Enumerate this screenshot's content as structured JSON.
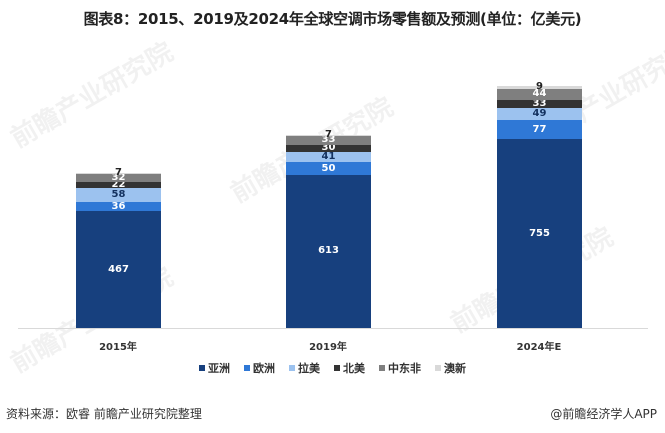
{
  "title": "图表8：2015、2019及2024年全球空调市场零售额及预测(单位：亿美元)",
  "watermark": "前瞻产业研究院",
  "source": "资料来源：欧睿 前瞻产业研究院整理",
  "credit": "@前瞻经济学人APP",
  "chart_data": {
    "type": "bar",
    "stacked": true,
    "title": "图表8：2015、2019及2024年全球空调市场零售额及预测(单位：亿美元)",
    "xlabel": "",
    "ylabel": "亿美元",
    "categories": [
      "2015年",
      "2019年",
      "2024年E"
    ],
    "series": [
      {
        "name": "亚洲",
        "color": "#17407e",
        "label_color": "#ffffff",
        "values": [
          467,
          613,
          755
        ]
      },
      {
        "name": "欧洲",
        "color": "#2f78d6",
        "label_color": "#ffffff",
        "values": [
          36,
          50,
          77
        ]
      },
      {
        "name": "拉美",
        "color": "#9cc2ef",
        "label_color": "#13315f",
        "values": [
          58,
          41,
          49
        ]
      },
      {
        "name": "北美",
        "color": "#333333",
        "label_color": "#ffffff",
        "values": [
          22,
          30,
          33
        ]
      },
      {
        "name": "中东非",
        "color": "#7f7f7f",
        "label_color": "#ffffff",
        "values": [
          32,
          33,
          44
        ]
      },
      {
        "name": "澳新",
        "color": "#d9d9d9",
        "label_color": "#222222",
        "values": [
          7,
          7,
          9
        ]
      }
    ],
    "grid": false,
    "yaxis_visible": false,
    "legend_position": "bottom",
    "data_labels": true
  }
}
